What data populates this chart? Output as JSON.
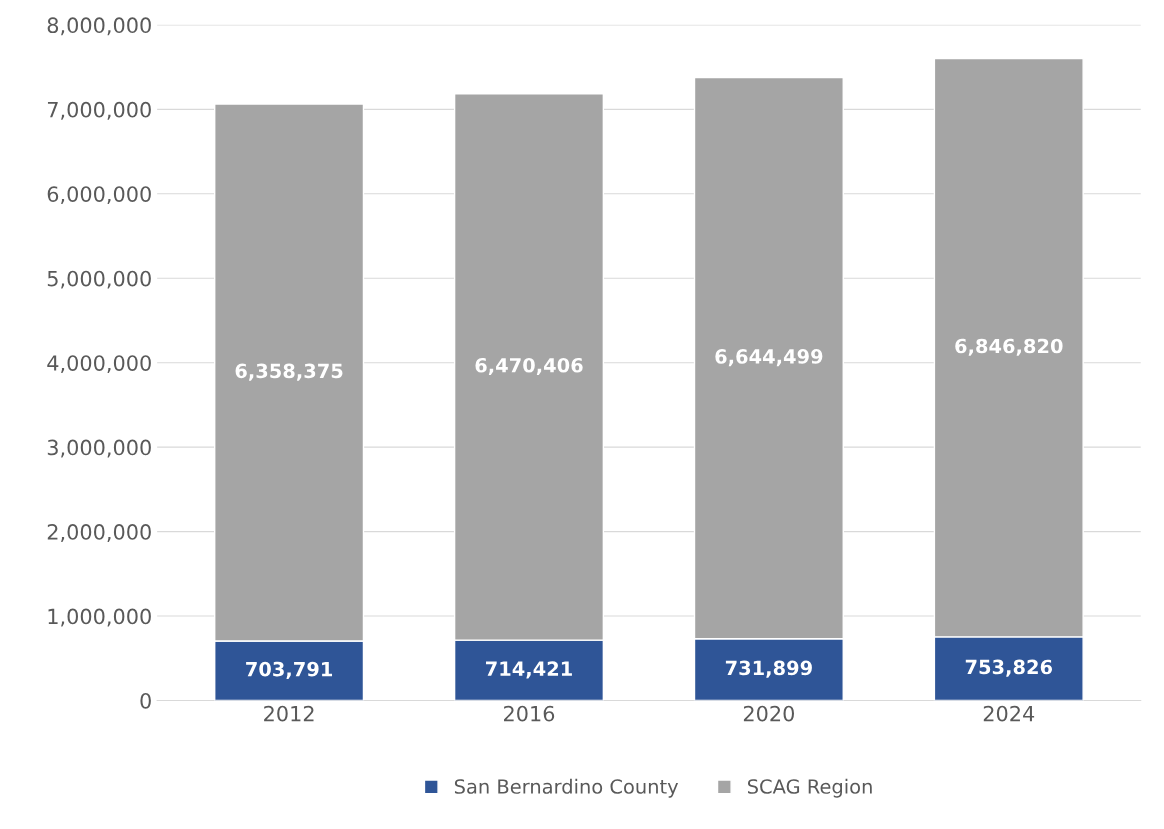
{
  "chart_data": {
    "type": "bar",
    "stacked": true,
    "categories": [
      "2012",
      "2016",
      "2020",
      "2024"
    ],
    "series": [
      {
        "name": "San Bernardino County",
        "color": "#2f5597",
        "values": [
          703791,
          714421,
          731899,
          753826
        ],
        "value_labels": [
          "703,791",
          "714,421",
          "731,899",
          "753,826"
        ]
      },
      {
        "name": "SCAG Region",
        "color": "#a5a5a5",
        "values": [
          6358375,
          6470406,
          6644499,
          6846820
        ],
        "value_labels": [
          "6,358,375",
          "6,470,406",
          "6,644,499",
          "6,846,820"
        ]
      }
    ],
    "ylim": [
      0,
      8000000
    ],
    "yticks": [
      0,
      {
        "value": 1000000,
        "label": "1,000,000"
      },
      {
        "value": 2000000,
        "label": "2,000,000"
      },
      {
        "value": 3000000,
        "label": "3,000,000"
      },
      {
        "value": 4000000,
        "label": "4,000,000"
      },
      {
        "value": 5000000,
        "label": "5,000,000"
      },
      {
        "value": 6000000,
        "label": "6,000,000"
      },
      {
        "value": 7000000,
        "label": "7,000,000"
      },
      {
        "value": 8000000,
        "label": "8,000,000"
      }
    ],
    "grid": "y",
    "legend": "bottom"
  }
}
